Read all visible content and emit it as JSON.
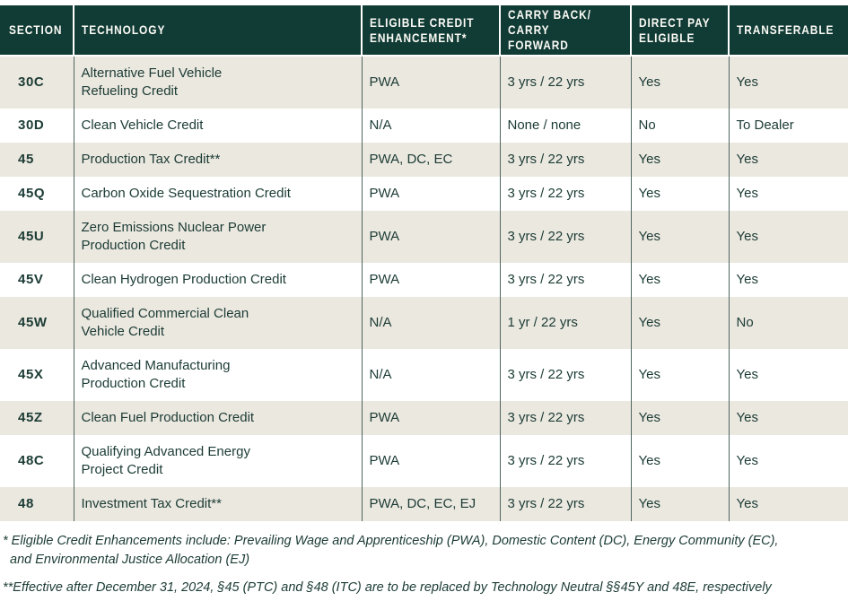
{
  "colors": {
    "header_bg": "#113B35",
    "header_text": "#FCFBF6",
    "row_shade": "#EBE8E0",
    "row_plain": "#FFFFFF",
    "body_text": "#1B3B34",
    "column_divider": "#4E6660"
  },
  "table": {
    "columns": [
      {
        "key": "section",
        "label": "SECTION"
      },
      {
        "key": "technology",
        "label": "TECHNOLOGY"
      },
      {
        "key": "enhancement",
        "label": "ELIGIBLE CREDIT\nENHANCEMENT*"
      },
      {
        "key": "carry",
        "label": "CARRY BACK/\nCARRY FORWARD"
      },
      {
        "key": "direct_pay",
        "label": "DIRECT PAY\nELIGIBLE"
      },
      {
        "key": "transferable",
        "label": "TRANSFERABLE"
      }
    ],
    "rows": [
      {
        "section": "30C",
        "technology": "Alternative Fuel Vehicle\nRefueling Credit",
        "enhancement": "PWA",
        "carry": "3 yrs / 22 yrs",
        "direct_pay": "Yes",
        "transferable": "Yes"
      },
      {
        "section": "30D",
        "technology": "Clean Vehicle Credit",
        "enhancement": "N/A",
        "carry": "None / none",
        "direct_pay": "No",
        "transferable": "To Dealer"
      },
      {
        "section": "45",
        "technology": "Production Tax Credit**",
        "enhancement": "PWA, DC, EC",
        "carry": "3 yrs / 22 yrs",
        "direct_pay": "Yes",
        "transferable": "Yes"
      },
      {
        "section": "45Q",
        "technology": "Carbon Oxide Sequestration Credit",
        "enhancement": "PWA",
        "carry": "3 yrs / 22 yrs",
        "direct_pay": "Yes",
        "transferable": "Yes"
      },
      {
        "section": "45U",
        "technology": "Zero Emissions Nuclear Power\nProduction Credit",
        "enhancement": "PWA",
        "carry": "3 yrs / 22 yrs",
        "direct_pay": "Yes",
        "transferable": "Yes"
      },
      {
        "section": "45V",
        "technology": "Clean Hydrogen Production Credit",
        "enhancement": "PWA",
        "carry": "3 yrs / 22 yrs",
        "direct_pay": "Yes",
        "transferable": "Yes"
      },
      {
        "section": "45W",
        "technology": "Qualified Commercial Clean\nVehicle Credit",
        "enhancement": "N/A",
        "carry": "1 yr / 22 yrs",
        "direct_pay": "Yes",
        "transferable": "No"
      },
      {
        "section": "45X",
        "technology": "Advanced Manufacturing\nProduction Credit",
        "enhancement": "N/A",
        "carry": "3 yrs / 22 yrs",
        "direct_pay": "Yes",
        "transferable": "Yes"
      },
      {
        "section": "45Z",
        "technology": "Clean Fuel Production  Credit",
        "enhancement": "PWA",
        "carry": "3 yrs / 22 yrs",
        "direct_pay": "Yes",
        "transferable": "Yes"
      },
      {
        "section": "48C",
        "technology": "Qualifying Advanced Energy\nProject Credit",
        "enhancement": "PWA",
        "carry": "3 yrs / 22 yrs",
        "direct_pay": "Yes",
        "transferable": "Yes"
      },
      {
        "section": "48",
        "technology": "Investment Tax Credit**",
        "enhancement": "PWA, DC, EC, EJ",
        "carry": "3 yrs / 22 yrs",
        "direct_pay": "Yes",
        "transferable": "Yes"
      }
    ]
  },
  "footnotes": [
    "* Eligible Credit Enhancements include: Prevailing Wage and Apprenticeship (PWA), Domestic Content (DC), Energy Community (EC),\nand Environmental Justice Allocation (EJ)",
    "**Effective after December 31, 2024, §45 (PTC) and §48 (ITC) are to be replaced by Technology Neutral §§45Y and 48E, respectively"
  ]
}
